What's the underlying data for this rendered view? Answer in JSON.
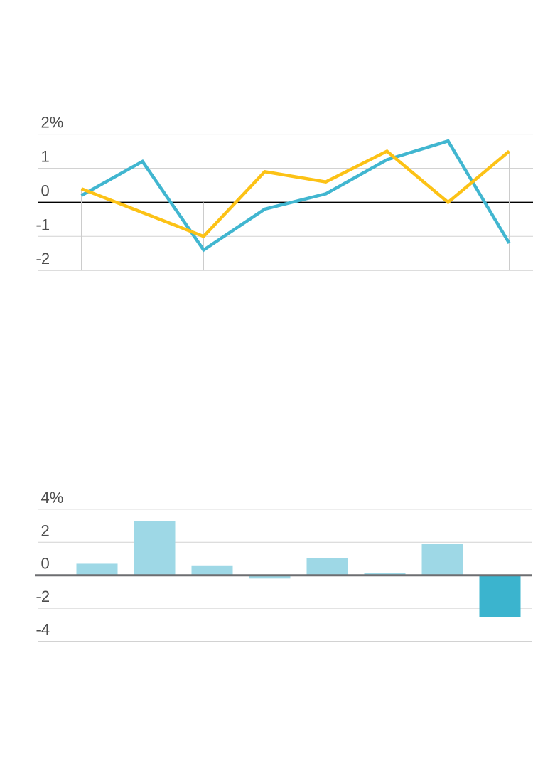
{
  "page": {
    "background_color": "#ffffff"
  },
  "chart_data": [
    {
      "id": "line-chart",
      "type": "line",
      "title": "",
      "xlabel": "",
      "ylabel": "",
      "unit": "%",
      "ylim": [
        -2,
        2
      ],
      "yticks": [
        2,
        1,
        0,
        -1,
        -2
      ],
      "ytick_labels": [
        "2%",
        "1",
        "0",
        "-1",
        "-2"
      ],
      "grid": true,
      "grid_color": "#d2d2d2",
      "zero_line_color": "#000000",
      "vertical_marker_color": "#cccccc",
      "x_point_count": 8,
      "series": [
        {
          "name": "blue-series",
          "color": "#41B6D0",
          "values": [
            0.2,
            1.2,
            -1.4,
            -0.2,
            0.25,
            1.25,
            1.8,
            -1.2
          ]
        },
        {
          "name": "yellow-series",
          "color": "#FCC216",
          "values": [
            0.4,
            -0.3,
            -1.0,
            0.9,
            0.6,
            1.5,
            0.0,
            1.5
          ]
        }
      ],
      "vertical_markers": [
        {
          "x_index": 0,
          "from_value": 0.4,
          "to_value": -2
        },
        {
          "x_index": 2,
          "from_value": 0.0,
          "to_value": -2
        },
        {
          "x_index": 7,
          "from_value": 1.5,
          "to_value": -2
        }
      ]
    },
    {
      "id": "bar-chart",
      "type": "bar",
      "title": "",
      "xlabel": "",
      "ylabel": "",
      "unit": "%",
      "ylim": [
        -4,
        4
      ],
      "yticks": [
        4,
        2,
        0,
        -2,
        -4
      ],
      "ytick_labels": [
        "4%",
        "2",
        "0",
        "-2",
        "-4"
      ],
      "grid": true,
      "grid_color": "#d2d2d2",
      "zero_line_color": "#6d6e71",
      "bar_default_color": "#9ED8E6",
      "bar_highlight_color": "#3BB4CE",
      "values": [
        0.7,
        3.3,
        0.6,
        -0.2,
        1.05,
        0.15,
        1.9,
        -2.55
      ],
      "bar_colors": [
        "#9ED8E6",
        "#9ED8E6",
        "#9ED8E6",
        "#9ED8E6",
        "#9ED8E6",
        "#9ED8E6",
        "#9ED8E6",
        "#3BB4CE"
      ]
    }
  ]
}
